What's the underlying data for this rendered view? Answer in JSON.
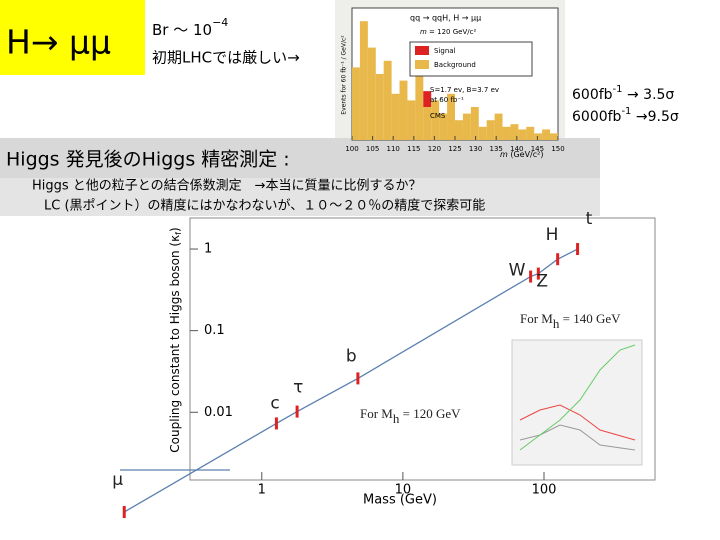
{
  "header": {
    "title": "H→ μμ",
    "br": "Br ～ 10",
    "br_exp": "−4",
    "note": "初期LHCでは厳しい→"
  },
  "inset_hist": {
    "process": "qq → qqH, H → μμ",
    "mass": "m",
    "mass_rest": " = 120 GeV/c²",
    "ylabel": "Events for 60 fb⁻¹ / GeV/c²",
    "legend": [
      "Signal",
      "Background"
    ],
    "sb": "S=1.7 ev, B=3.7 ev",
    "lumi": "at 60 fb⁻¹",
    "experiment": "CMS",
    "xticks": [
      100,
      105,
      110,
      115,
      120,
      125,
      130,
      135,
      140,
      145,
      150
    ],
    "xlabel": "m",
    "xlabel_rest": " (GeV/c²)",
    "xlim": [
      100,
      150
    ],
    "ylim": [
      0,
      1
    ],
    "background": [
      0.55,
      0.9,
      0.7,
      0.5,
      0.6,
      0.35,
      0.45,
      0.3,
      0.5,
      0.25,
      0.3,
      0.2,
      0.35,
      0.15,
      0.2,
      0.25,
      0.1,
      0.15,
      0.2,
      0.1,
      0.12,
      0.08,
      0.1,
      0.05,
      0.08,
      0.05
    ],
    "signal": [
      0,
      0,
      0,
      0,
      0,
      0,
      0,
      0,
      0,
      0.12,
      0,
      0,
      0,
      0,
      0,
      0,
      0,
      0,
      0,
      0,
      0,
      0,
      0,
      0,
      0,
      0
    ]
  },
  "lumi": [
    {
      "lumi": "600fb",
      "exp": "-1",
      "result": " →  3.5σ"
    },
    {
      "lumi": "6000fb",
      "exp": "-1",
      "result": " →9.5σ"
    }
  ],
  "section": {
    "title": "Higgs 発見後のHiggs 精密測定 :",
    "line1": "Higgs と他の粒子との結合係数測定　→本当に質量に比例するか？",
    "line2": "LC (黒ポイント）の精度にはかなわないが、１０～２０％の精度で探索可能"
  },
  "plot": {
    "xlabel": "Mass (GeV)",
    "ylabel": "Coupling constant to Higgs boson (κ",
    "ylabel_sub": "f",
    "ylabel_end": ")",
    "xlim": [
      0.31,
      612
    ],
    "ylim": [
      0.00148,
      2.4
    ],
    "xticks": [
      1,
      10,
      100
    ],
    "yticks": [
      {
        "value": 0.01,
        "label": "0.01"
      },
      {
        "value": 0.1,
        "label": "0.1"
      },
      1
    ],
    "particles": [
      {
        "name": "μ",
        "mass": 0.106,
        "coupling": 0.0006
      },
      {
        "name": "c",
        "mass": 1.27,
        "coupling": 0.0073
      },
      {
        "name": "τ",
        "mass": 1.78,
        "coupling": 0.0102
      },
      {
        "name": "b",
        "mass": 4.8,
        "coupling": 0.026
      },
      {
        "name": "W",
        "mass": 80.4,
        "coupling": 0.46
      },
      {
        "name": "Z",
        "mass": 91.2,
        "coupling": 0.5
      },
      {
        "name": "H",
        "mass": 125,
        "coupling": 0.75
      },
      {
        "name": "t",
        "mass": 173,
        "coupling": 1.0
      }
    ],
    "annotations": [
      {
        "text": "For M",
        "sub": "h",
        "rest": " = 140 GeV"
      },
      {
        "text": "For M",
        "sub": "h",
        "rest": " = 120 GeV"
      }
    ]
  }
}
